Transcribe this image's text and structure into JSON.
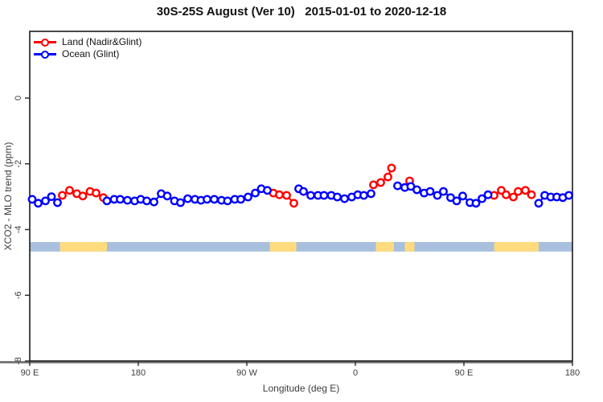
{
  "title": "30S-25S August (Ver 10)   2015-01-01 to 2020-12-18",
  "legend": [
    {
      "label": "Land (Nadir&Glint)",
      "color": "#ff0000"
    },
    {
      "label": "Ocean (Glint)",
      "color": "#0000ff"
    }
  ],
  "chart_data": {
    "type": "line",
    "title": "30S-25S August (Ver 10)   2015-01-01 to 2020-12-18",
    "xlabel": "Longitude (deg E)",
    "ylabel": "XCO2 - MLO trend (ppm)",
    "xlim": [
      90,
      540
    ],
    "ylim": [
      -8,
      2.03
    ],
    "grid": false,
    "legend_position": "top-left",
    "x_ticks": [
      {
        "value": 90,
        "label": "90 E"
      },
      {
        "value": 180,
        "label": "180"
      },
      {
        "value": 270,
        "label": "90 W"
      },
      {
        "value": 360,
        "label": "0"
      },
      {
        "value": 450,
        "label": "90 E"
      },
      {
        "value": 540,
        "label": "180"
      }
    ],
    "y_ticks": [
      {
        "value": 0,
        "label": "0"
      },
      {
        "value": -2,
        "label": "-2"
      },
      {
        "value": -4,
        "label": "-4"
      },
      {
        "value": -6,
        "label": "-6"
      },
      {
        "value": -8,
        "label": "-8"
      }
    ],
    "series": [
      {
        "name": "Land (Nadir&Glint)",
        "color": "#ff0000",
        "marker": "open-circle",
        "segments": [
          [
            [
              117,
              -2.96
            ],
            [
              123,
              -2.81
            ],
            [
              129,
              -2.91
            ],
            [
              134,
              -2.98
            ],
            [
              140,
              -2.84
            ],
            [
              145,
              -2.89
            ],
            [
              151,
              -3.03
            ]
          ],
          [
            [
              292,
              -2.89
            ],
            [
              297,
              -2.94
            ],
            [
              303,
              -2.96
            ],
            [
              309,
              -3.2
            ]
          ],
          [
            [
              375,
              -2.64
            ],
            [
              381,
              -2.57
            ],
            [
              387,
              -2.4
            ],
            [
              390,
              -2.13
            ]
          ],
          [
            [
              405,
              -2.52
            ]
          ],
          [
            [
              475,
              -2.96
            ],
            [
              481,
              -2.81
            ],
            [
              485,
              -2.94
            ],
            [
              491,
              -3.01
            ],
            [
              495,
              -2.84
            ],
            [
              501,
              -2.81
            ],
            [
              506,
              -2.94
            ]
          ]
        ]
      },
      {
        "name": "Ocean (Glint)",
        "color": "#0000ff",
        "marker": "open-circle",
        "segments": [
          [
            [
              92,
              -3.08
            ],
            [
              97,
              -3.2
            ],
            [
              103,
              -3.13
            ],
            [
              108,
              -3.0
            ],
            [
              113,
              -3.18
            ]
          ],
          [
            [
              154,
              -3.13
            ],
            [
              160,
              -3.08
            ],
            [
              165,
              -3.08
            ],
            [
              171,
              -3.11
            ],
            [
              177,
              -3.13
            ],
            [
              182,
              -3.08
            ],
            [
              187,
              -3.13
            ],
            [
              193,
              -3.16
            ],
            [
              199,
              -2.91
            ],
            [
              204,
              -2.98
            ],
            [
              210,
              -3.13
            ],
            [
              215,
              -3.18
            ],
            [
              221,
              -3.06
            ],
            [
              227,
              -3.08
            ],
            [
              232,
              -3.11
            ],
            [
              237,
              -3.08
            ],
            [
              243,
              -3.08
            ],
            [
              249,
              -3.11
            ],
            [
              254,
              -3.13
            ],
            [
              260,
              -3.08
            ],
            [
              265,
              -3.08
            ],
            [
              271,
              -3.01
            ],
            [
              277,
              -2.89
            ],
            [
              282,
              -2.76
            ],
            [
              287,
              -2.81
            ]
          ],
          [
            [
              313,
              -2.76
            ],
            [
              317,
              -2.84
            ],
            [
              323,
              -2.96
            ],
            [
              329,
              -2.96
            ],
            [
              334,
              -2.96
            ],
            [
              340,
              -2.96
            ],
            [
              345,
              -3.01
            ],
            [
              351,
              -3.06
            ],
            [
              357,
              -3.01
            ],
            [
              362,
              -2.94
            ],
            [
              367,
              -2.96
            ],
            [
              373,
              -2.91
            ]
          ],
          [
            [
              395,
              -2.67
            ],
            [
              401,
              -2.72
            ],
            [
              406,
              -2.69
            ],
            [
              411,
              -2.79
            ],
            [
              417,
              -2.89
            ],
            [
              422,
              -2.84
            ],
            [
              428,
              -2.96
            ],
            [
              433,
              -2.84
            ],
            [
              439,
              -3.03
            ],
            [
              444,
              -3.13
            ],
            [
              449,
              -2.98
            ],
            [
              455,
              -3.18
            ],
            [
              460,
              -3.2
            ],
            [
              465,
              -3.06
            ],
            [
              470,
              -2.94
            ]
          ],
          [
            [
              512,
              -3.2
            ],
            [
              517,
              -2.96
            ],
            [
              522,
              -3.01
            ],
            [
              527,
              -3.01
            ],
            [
              532,
              -3.03
            ],
            [
              537,
              -2.96
            ]
          ]
        ]
      }
    ],
    "surface_band": {
      "description": "land-ocean strip along latitude band",
      "top_ppm": -4.38,
      "bottom_ppm": -4.67,
      "ocean_color": "#a8c0de",
      "land_color": "#ffdb7d",
      "range_deg": [
        90,
        540
      ],
      "land_ranges_deg": [
        [
          115,
          154
        ],
        [
          289,
          311
        ],
        [
          377,
          392
        ],
        [
          401,
          409
        ],
        [
          475,
          512
        ]
      ]
    },
    "colors": {
      "axis_box": "#1c1c1c",
      "axis_heavy_line": "#7a7a7a",
      "tick_text": "#3d3d3d"
    }
  }
}
